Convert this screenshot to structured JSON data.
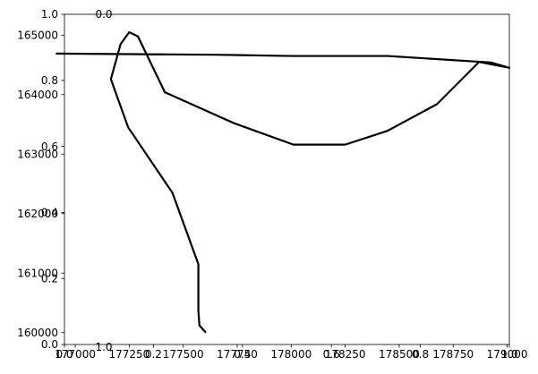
{
  "chart_data": {
    "type": "line",
    "title": "",
    "xlabel": "",
    "ylabel": "",
    "xlim": [
      176950,
      179010
    ],
    "ylim": [
      159800,
      165350
    ],
    "grid": false,
    "series": [
      {
        "x": [
          177605,
          177575,
          177570,
          177570,
          177450,
          177245,
          177165,
          177210,
          177250,
          177290,
          177415,
          177735,
          178010,
          178250,
          178445,
          178675,
          178870,
          179010,
          178925,
          178445,
          178000,
          177655,
          176910
        ],
        "y": [
          160000,
          160120,
          160370,
          161150,
          162350,
          163450,
          164260,
          164850,
          165050,
          164980,
          164040,
          163520,
          163160,
          163160,
          163390,
          163840,
          164550,
          164450,
          164540,
          164650,
          164650,
          164670,
          164690
        ]
      }
    ],
    "axes": {
      "x_ticks": [
        "177000",
        "177250",
        "177500",
        "177750",
        "178000",
        "178250",
        "178500",
        "178750",
        "179000"
      ],
      "y_ticks": [
        "160000",
        "161000",
        "162000",
        "163000",
        "164000",
        "165000"
      ],
      "twin_x_ticks": [
        "0.0",
        "0.2",
        "0.4",
        "0.6",
        "0.8",
        "1.0"
      ],
      "twin_y_ticks": [
        "0.0",
        "0.2",
        "0.4",
        "0.6",
        "0.8",
        "1.0"
      ],
      "stray_top_label": "0.0",
      "stray_bottom_label": "1.0"
    },
    "colors": {
      "line": "#000000",
      "axes": "#000000",
      "background": "#ffffff"
    }
  }
}
